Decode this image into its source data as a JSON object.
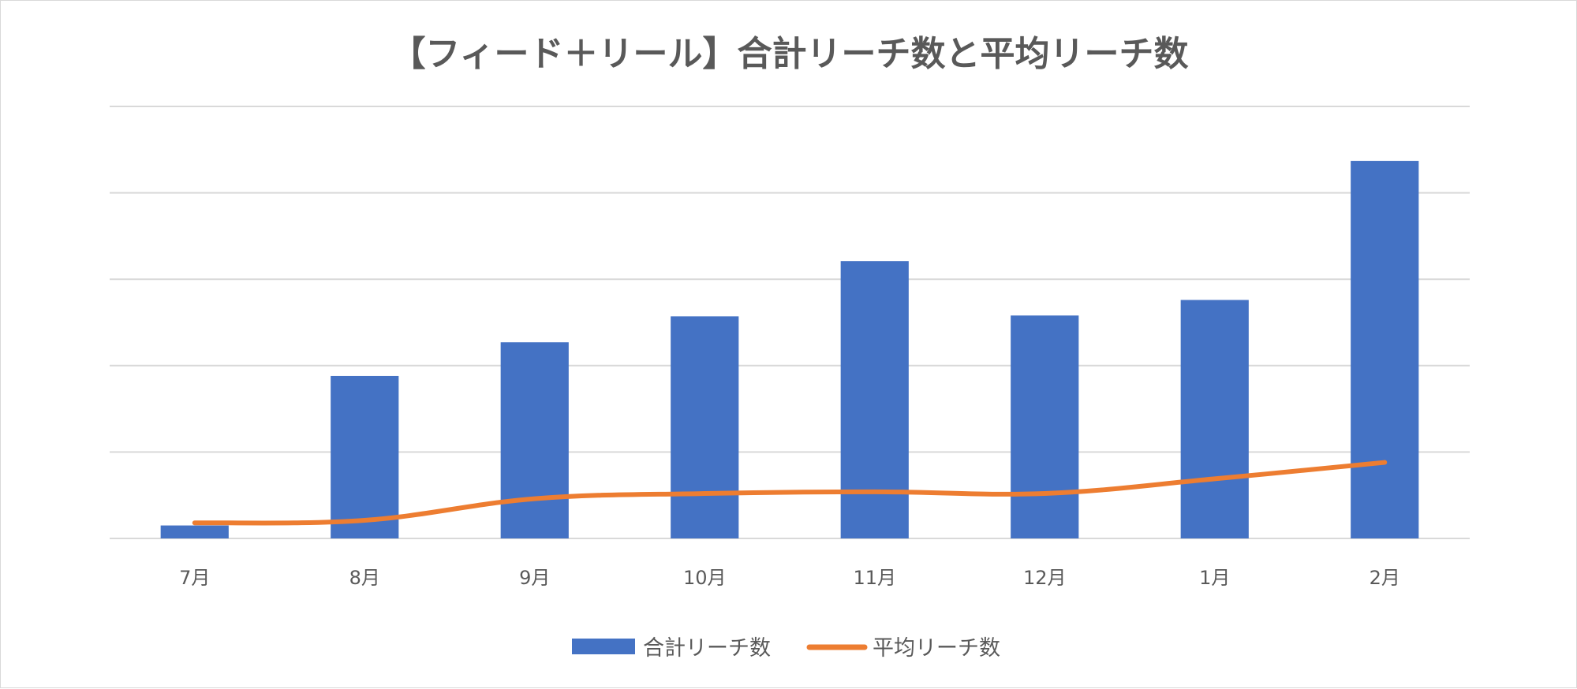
{
  "chart_data": {
    "type": "bar",
    "title": "【フィード＋リール】合計リーチ数と平均リーチ数",
    "categories": [
      "7月",
      "8月",
      "9月",
      "10月",
      "11月",
      "12月",
      "1月",
      "2月"
    ],
    "ylim": [
      0,
      5
    ],
    "grid": true,
    "y_axis_labels_shown": false,
    "legend_position": "bottom",
    "series": [
      {
        "name": "合計リーチ数",
        "type": "bar",
        "color": "#4472C4",
        "values": [
          0.15,
          1.88,
          2.27,
          2.57,
          3.21,
          2.58,
          2.76,
          4.37
        ]
      },
      {
        "name": "平均リーチ数",
        "type": "line",
        "color": "#ED7D31",
        "values": [
          0.18,
          0.21,
          0.46,
          0.52,
          0.54,
          0.52,
          0.69,
          0.88
        ]
      }
    ]
  }
}
